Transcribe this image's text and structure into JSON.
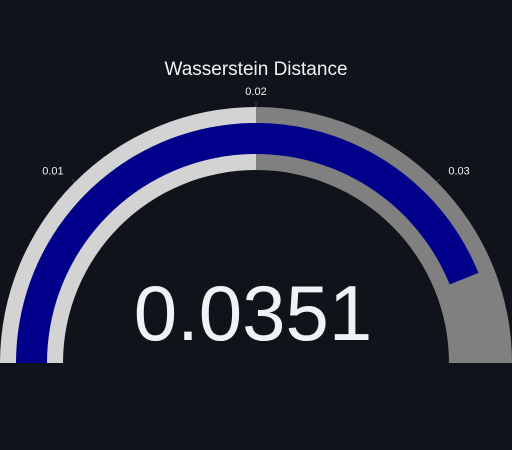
{
  "chart_data": {
    "type": "gauge",
    "title": "Wasserstein Distance",
    "value": 0.0351,
    "value_display": "0.0351",
    "range": [
      0,
      0.04
    ],
    "ticks": [
      {
        "value": 0.01,
        "label": "0.01"
      },
      {
        "value": 0.02,
        "label": "0.02"
      },
      {
        "value": 0.03,
        "label": "0.03"
      }
    ],
    "steps": [
      {
        "range": [
          0,
          0.02
        ],
        "color": "#d3d3d3"
      },
      {
        "range": [
          0.02,
          0.04
        ],
        "color": "#808080"
      }
    ],
    "bar_color": "#00008b",
    "background_color": "#10131a",
    "text_color": "#f0f2f5"
  }
}
